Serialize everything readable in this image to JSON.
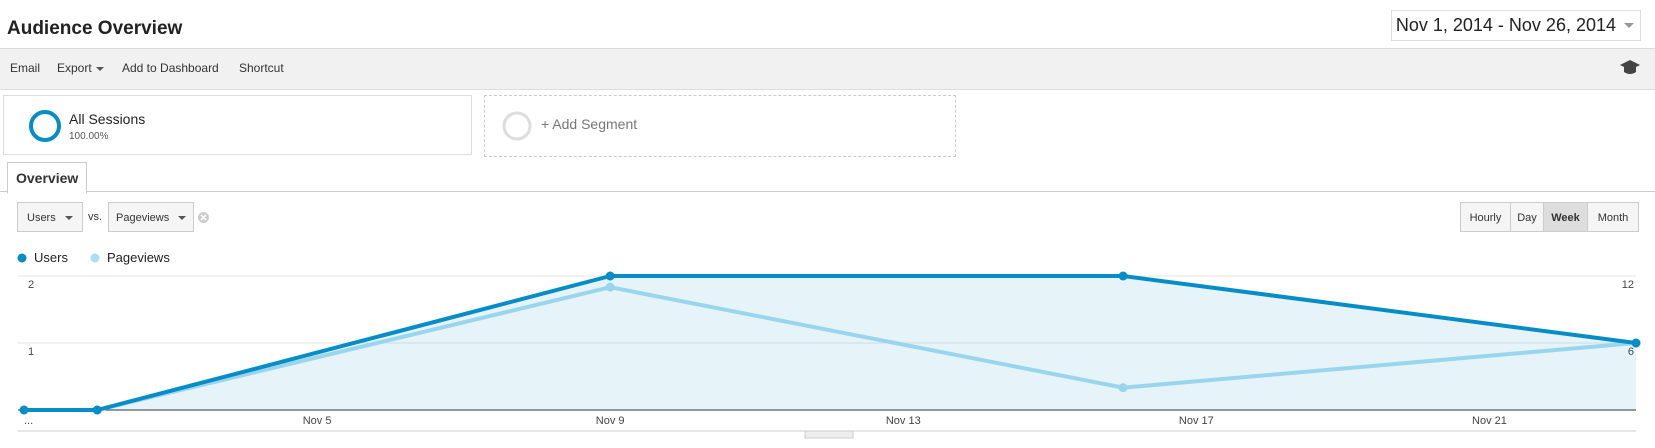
{
  "header": {
    "title": "Audience Overview",
    "date_range": "Nov 1, 2014 - Nov 26, 2014"
  },
  "toolbar": {
    "items": [
      "Email",
      "Export",
      "Add to Dashboard",
      "Shortcut"
    ]
  },
  "segments": {
    "active": {
      "name": "All Sessions",
      "share": "100.00%"
    },
    "add": "+ Add Segment"
  },
  "tabs": [
    "Overview"
  ],
  "controls": {
    "metric": "Users",
    "vs": "vs.",
    "compare_metric": "Pageviews",
    "intervals": [
      "Hourly",
      "Day",
      "Week",
      "Month"
    ],
    "selected_interval": "Week"
  },
  "chart_data": {
    "type": "line",
    "x": [
      1,
      2,
      9,
      16,
      23
    ],
    "xlim": [
      1,
      23
    ],
    "xticks": [
      {
        "value": 1,
        "label": "..."
      },
      {
        "value": 5,
        "label": "Nov 5"
      },
      {
        "value": 9,
        "label": "Nov 9"
      },
      {
        "value": 13,
        "label": "Nov 13"
      },
      {
        "value": 17,
        "label": "Nov 17"
      },
      {
        "value": 21,
        "label": "Nov 21"
      }
    ],
    "ylim": [
      0,
      2
    ],
    "yticks": [
      1,
      2
    ],
    "y2lim": [
      0,
      12
    ],
    "y2ticks": [
      6,
      12
    ],
    "grid": true,
    "series": [
      {
        "name": "Users",
        "color": "#058dc7",
        "values": [
          0,
          0,
          2,
          2,
          1
        ],
        "area": true
      },
      {
        "name": "Pageviews",
        "color": "#aadff3",
        "values": [
          0,
          0,
          11,
          2,
          6
        ],
        "axis": "y2"
      }
    ]
  }
}
